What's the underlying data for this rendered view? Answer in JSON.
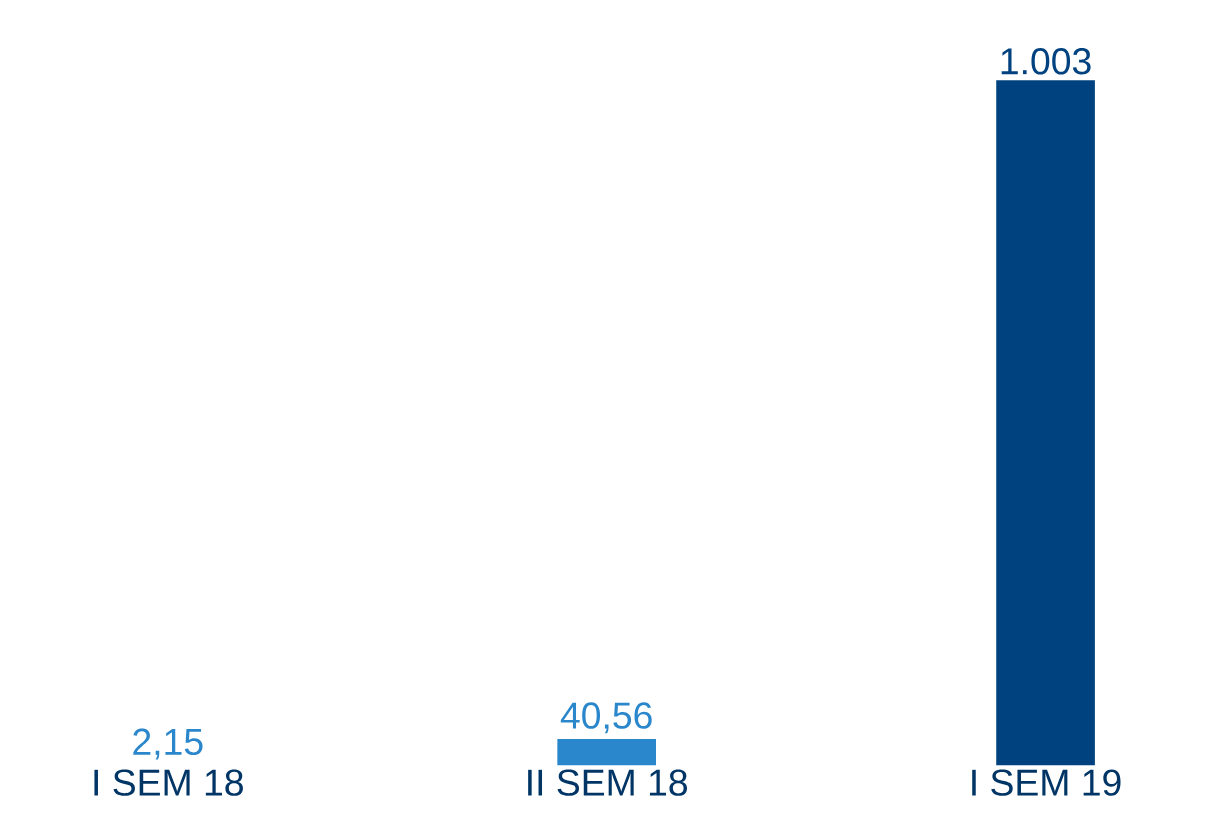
{
  "chart_data": {
    "type": "bar",
    "categories": [
      "I SEM 18",
      "II SEM 18",
      "I SEM 19"
    ],
    "values": [
      2.15,
      40.56,
      1003
    ],
    "colors": [
      "#2b87cc",
      "#2b87cc",
      "#00427f"
    ],
    "value_labels": [
      "2,15",
      "40,56",
      "1.003"
    ]
  }
}
